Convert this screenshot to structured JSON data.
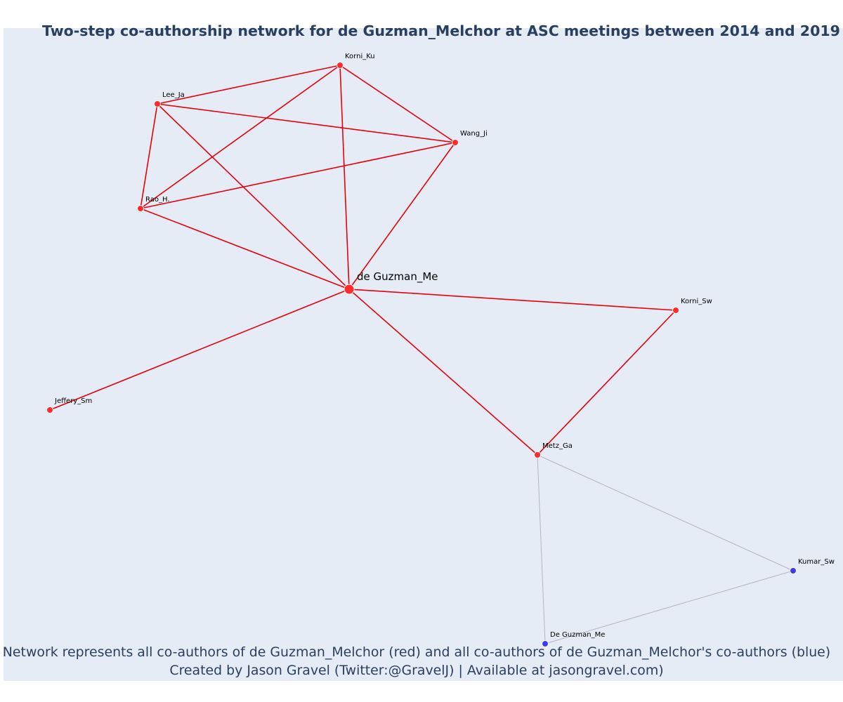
{
  "title": "Two-step co-authorship network for de Guzman_Melchor at ASC meetings between 2014 and 2019",
  "caption": {
    "line1": "Network represents all co-authors of de Guzman_Melchor (red) and all co-authors of de Guzman_Melchor's co-authors (blue)",
    "line2": "Created by Jason Gravel (Twitter:@GravelJ) | Available at jasongravel.com)"
  },
  "colors": {
    "plot_background": "#e5ecf6",
    "text": "#2a3f5f",
    "first_degree": "#ff2a2a",
    "second_degree": "#3b3bf0",
    "first_edge": "#e8000b",
    "second_edge": "#b4b4c8",
    "node_outline": "#ffffff"
  },
  "chart_data": {
    "type": "network",
    "title": "Two-step co-authorship network for de Guzman_Melchor at ASC meetings between 2014 and 2019",
    "nodes": [
      {
        "id": "de Guzman_Me",
        "group": "focal"
      },
      {
        "id": "Korni_Ku",
        "group": "coauthor"
      },
      {
        "id": "Lee_Ja",
        "group": "coauthor"
      },
      {
        "id": "Wang_Ji",
        "group": "coauthor"
      },
      {
        "id": "Rao_H.",
        "group": "coauthor"
      },
      {
        "id": "Korni_Sw",
        "group": "coauthor"
      },
      {
        "id": "Jeffery_Sm",
        "group": "coauthor"
      },
      {
        "id": "Metz_Ga",
        "group": "coauthor"
      },
      {
        "id": "Kumar_Sw",
        "group": "second_degree"
      },
      {
        "id": "De Guzman_Me",
        "group": "second_degree"
      }
    ],
    "edges": [
      {
        "source": "Korni_Ku",
        "target": "Lee_Ja",
        "type": "first"
      },
      {
        "source": "Korni_Ku",
        "target": "Wang_Ji",
        "type": "first"
      },
      {
        "source": "Korni_Ku",
        "target": "Rao_H.",
        "type": "first"
      },
      {
        "source": "Korni_Ku",
        "target": "de Guzman_Me",
        "type": "first"
      },
      {
        "source": "Lee_Ja",
        "target": "Wang_Ji",
        "type": "first"
      },
      {
        "source": "Lee_Ja",
        "target": "Rao_H.",
        "type": "first"
      },
      {
        "source": "Lee_Ja",
        "target": "de Guzman_Me",
        "type": "first"
      },
      {
        "source": "Wang_Ji",
        "target": "Rao_H.",
        "type": "first"
      },
      {
        "source": "Wang_Ji",
        "target": "de Guzman_Me",
        "type": "first"
      },
      {
        "source": "Rao_H.",
        "target": "de Guzman_Me",
        "type": "first"
      },
      {
        "source": "de Guzman_Me",
        "target": "Korni_Sw",
        "type": "first"
      },
      {
        "source": "de Guzman_Me",
        "target": "Jeffery_Sm",
        "type": "first"
      },
      {
        "source": "de Guzman_Me",
        "target": "Metz_Ga",
        "type": "first"
      },
      {
        "source": "Korni_Sw",
        "target": "Metz_Ga",
        "type": "first"
      },
      {
        "source": "Metz_Ga",
        "target": "Kumar_Sw",
        "type": "second"
      },
      {
        "source": "Metz_Ga",
        "target": "De Guzman_Me",
        "type": "second"
      },
      {
        "source": "Kumar_Sw",
        "target": "De Guzman_Me",
        "type": "second"
      }
    ]
  }
}
